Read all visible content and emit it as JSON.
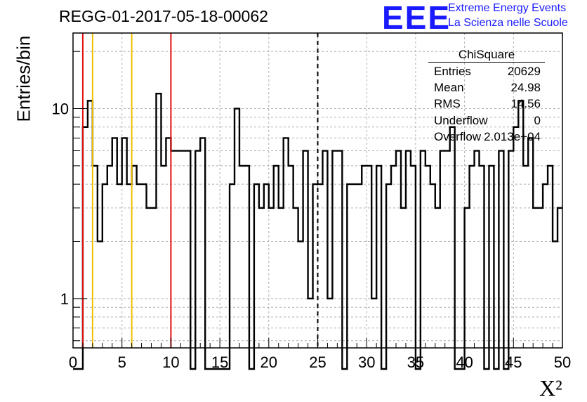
{
  "header": {
    "title": "REGG-01-2017-05-18-00062",
    "logo_text": "EEE",
    "logo_line1": "Extreme Energy Events",
    "logo_line2": "La Scienza nelle Scuole"
  },
  "stats_box": {
    "title": "ChiSquare",
    "rows": [
      {
        "label": "Entries",
        "value": "20629"
      },
      {
        "label": "Mean",
        "value": "24.98"
      },
      {
        "label": "RMS",
        "value": "14.56"
      },
      {
        "label": "Underflow",
        "value": "0"
      },
      {
        "label": "Overflow",
        "value": "2.013e+04"
      }
    ]
  },
  "chart_data": {
    "type": "histogram",
    "ylabel": "Entries/bin",
    "xlabel": "X²",
    "xlim": [
      0,
      50
    ],
    "ylim": [
      0.55,
      25
    ],
    "yscale": "log",
    "bin_width": 0.5,
    "x_ticks": [
      "0",
      "5",
      "10",
      "15",
      "20",
      "25",
      "30",
      "35",
      "40",
      "45",
      "50"
    ],
    "y_ticks": [
      "1",
      "10"
    ],
    "grid": true,
    "values": [
      0,
      0,
      8,
      11,
      5,
      2,
      4,
      5,
      7,
      4,
      7,
      4,
      5,
      4,
      4,
      3,
      3,
      12,
      5,
      7,
      6,
      6,
      6,
      6,
      0,
      6,
      7,
      0,
      0,
      0,
      0,
      0,
      4,
      10,
      5,
      5,
      0,
      4,
      3,
      4,
      3,
      5,
      3,
      7,
      5,
      3,
      2,
      6,
      1,
      4,
      4,
      6,
      1,
      6,
      6,
      0,
      4,
      4,
      4,
      5,
      5,
      1,
      5,
      0,
      4,
      5,
      6,
      3,
      6,
      5,
      0,
      6,
      5,
      4,
      3,
      6,
      6,
      8,
      0,
      0,
      3,
      5,
      6,
      5,
      0,
      5,
      0,
      6,
      0,
      6,
      8,
      11,
      5,
      7,
      3,
      3,
      4,
      5,
      2,
      3
    ],
    "vlines": [
      {
        "x": 1,
        "color": "#e01010",
        "style": "solid"
      },
      {
        "x": 2,
        "color": "#f0c000",
        "style": "solid"
      },
      {
        "x": 6,
        "color": "#f0c000",
        "style": "solid"
      },
      {
        "x": 10,
        "color": "#e01010",
        "style": "solid"
      },
      {
        "x": 25,
        "color": "#000000",
        "style": "dashed"
      }
    ]
  }
}
